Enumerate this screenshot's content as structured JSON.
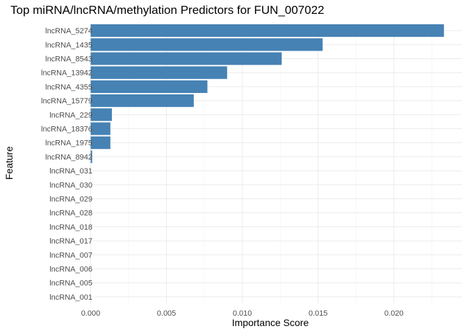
{
  "chart_data": {
    "type": "bar",
    "orientation": "horizontal",
    "title": "Top miRNA/lncRNA/methylation Predictors for FUN_007022",
    "xlabel": "Importance Score",
    "ylabel": "Feature",
    "xlim": [
      -0.0008,
      0.0245
    ],
    "x_ticks": [
      0.0,
      0.005,
      0.01,
      0.015,
      0.02
    ],
    "x_tick_labels": [
      "0.000",
      "0.005",
      "0.010",
      "0.015",
      "0.020"
    ],
    "grid": true,
    "legend": "none",
    "bar_color": "#4682B4",
    "categories": [
      "lncRNA_5274",
      "lncRNA_1435",
      "lncRNA_8543",
      "lncRNA_13942",
      "lncRNA_4355",
      "lncRNA_15779",
      "lncRNA_229",
      "lncRNA_18376",
      "lncRNA_1975",
      "lncRNA_8942",
      "lncRNA_031",
      "lncRNA_030",
      "lncRNA_029",
      "lncRNA_028",
      "lncRNA_018",
      "lncRNA_017",
      "lncRNA_007",
      "lncRNA_006",
      "lncRNA_005",
      "lncRNA_001"
    ],
    "values": [
      0.0233,
      0.0153,
      0.0126,
      0.009,
      0.0077,
      0.0068,
      0.0014,
      0.0013,
      0.0013,
      0.0001,
      0,
      0,
      0,
      0,
      0,
      0,
      0,
      0,
      0,
      0
    ]
  }
}
